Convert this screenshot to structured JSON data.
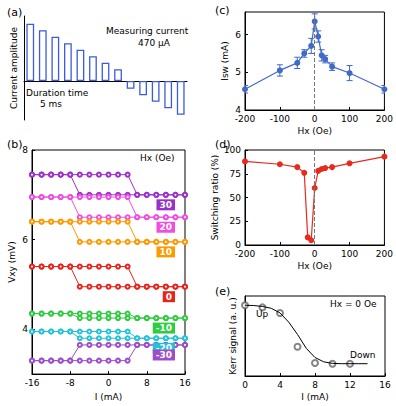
{
  "chart_data": [
    {
      "title": "(a)",
      "type": "bar",
      "categories": [
        null,
        null,
        null,
        null,
        null,
        null,
        null,
        null,
        null,
        null,
        null,
        null,
        null
      ],
      "values": [
        0.88,
        0.78,
        0.68,
        0.58,
        0.48,
        0.38,
        0.28,
        0.18,
        -0.12,
        -0.22,
        -0.32,
        -0.42,
        -0.52
      ],
      "color": "#3b5bdb",
      "ylim": [
        -0.6,
        1.0
      ],
      "tick_labels": false,
      "y_label": "Current amplitude",
      "annotations": [
        "Duration time",
        "5 ms",
        "Measuring current",
        "470 μA"
      ]
    },
    {
      "title": "(b)",
      "type": "line",
      "marker": "open_circle",
      "x": [
        -16,
        -14,
        -12,
        -10,
        -8,
        -6,
        -4,
        -2,
        0,
        2,
        4,
        6,
        8,
        10,
        12,
        14,
        16,
        16,
        14,
        12,
        10,
        8,
        6,
        4,
        2,
        0,
        -2,
        -4,
        -6,
        -8,
        -10,
        -12,
        -14,
        -16
      ],
      "series": [
        {
          "name": "30",
          "color": "#9b30c8",
          "values": [
            7.45,
            7.45,
            7.45,
            7.45,
            7.45,
            7.45,
            7.45,
            7.45,
            7.45,
            7.45,
            7.45,
            7.0,
            7.0,
            7.0,
            7.0,
            7.0,
            7.0,
            7.0,
            7.0,
            7.0,
            7.0,
            7.0,
            7.0,
            7.0,
            7.0,
            7.0,
            7.0,
            7.0,
            7.0,
            7.45,
            7.45,
            7.45,
            7.45,
            7.45
          ]
        },
        {
          "name": "20",
          "color": "#f04de0",
          "values": [
            6.95,
            6.95,
            6.95,
            6.95,
            6.95,
            6.95,
            6.95,
            6.95,
            6.95,
            6.95,
            6.95,
            6.5,
            6.5,
            6.5,
            6.5,
            6.5,
            6.5,
            6.5,
            6.5,
            6.5,
            6.5,
            6.5,
            6.5,
            6.5,
            6.5,
            6.5,
            6.5,
            6.5,
            6.5,
            6.95,
            6.95,
            6.95,
            6.95,
            6.95
          ]
        },
        {
          "name": "10",
          "color": "#ff9900",
          "values": [
            6.4,
            6.4,
            6.4,
            6.4,
            6.4,
            6.4,
            6.4,
            6.4,
            6.4,
            6.4,
            6.4,
            5.95,
            5.95,
            5.95,
            5.95,
            5.95,
            5.95,
            5.95,
            5.95,
            5.95,
            5.95,
            5.95,
            5.95,
            5.95,
            5.95,
            5.95,
            5.95,
            5.95,
            5.95,
            6.4,
            6.4,
            6.4,
            6.4,
            6.4
          ]
        },
        {
          "name": "0",
          "color": "#e8231a",
          "values": [
            5.4,
            5.4,
            5.4,
            5.4,
            5.4,
            5.4,
            5.4,
            5.4,
            5.4,
            5.4,
            5.4,
            4.95,
            4.95,
            4.95,
            4.95,
            4.95,
            4.95,
            4.95,
            4.95,
            4.95,
            4.95,
            4.95,
            4.95,
            4.95,
            4.95,
            4.95,
            4.95,
            4.95,
            4.95,
            5.4,
            5.4,
            5.4,
            5.4,
            5.4
          ]
        },
        {
          "name": "-10",
          "color": "#2ecc40",
          "values": [
            4.35,
            4.35,
            4.35,
            4.35,
            4.35,
            4.35,
            4.35,
            4.35,
            4.35,
            4.35,
            4.35,
            4.25,
            4.25,
            4.25,
            4.25,
            4.25,
            4.25,
            4.25,
            4.25,
            4.25,
            4.25,
            4.25,
            4.25,
            4.25,
            4.25,
            4.25,
            4.25,
            4.25,
            4.25,
            4.35,
            4.35,
            4.35,
            4.35,
            4.35
          ]
        },
        {
          "name": "-20",
          "color": "#22c3d6",
          "values": [
            3.95,
            3.95,
            3.95,
            3.95,
            3.95,
            3.95,
            3.95,
            3.95,
            3.95,
            3.95,
            3.95,
            3.8,
            3.8,
            3.8,
            3.8,
            3.8,
            3.8,
            3.8,
            3.8,
            3.8,
            3.8,
            3.8,
            3.8,
            3.8,
            3.8,
            3.8,
            3.8,
            3.8,
            3.8,
            3.95,
            3.95,
            3.95,
            3.95,
            3.95
          ]
        },
        {
          "name": "-30",
          "color": "#9b4dca",
          "values": [
            3.3,
            3.3,
            3.3,
            3.3,
            3.3,
            3.3,
            3.3,
            3.3,
            3.3,
            3.3,
            3.3,
            3.65,
            3.65,
            3.65,
            3.65,
            3.65,
            3.65,
            3.65,
            3.65,
            3.65,
            3.65,
            3.65,
            3.65,
            3.65,
            3.65,
            3.65,
            3.65,
            3.65,
            3.65,
            3.3,
            3.3,
            3.3,
            3.3,
            3.3
          ]
        }
      ],
      "x_label": "I (mA)",
      "y_label": "Vxy (mV)",
      "xlim": [
        -16,
        16
      ],
      "xticks": [
        -16,
        -8,
        0,
        8,
        16
      ],
      "ylim": [
        3,
        8
      ],
      "yticks": [
        4,
        6,
        8
      ],
      "annotations": [
        "Hx (Oe)"
      ]
    },
    {
      "title": "(c)",
      "type": "line",
      "marker": "circle",
      "color": "#4169c8",
      "x": [
        -200,
        -100,
        -50,
        -30,
        -10,
        0,
        10,
        20,
        30,
        50,
        100,
        200
      ],
      "values": [
        4.55,
        5.05,
        5.25,
        5.5,
        5.7,
        6.35,
        5.95,
        5.45,
        5.35,
        5.15,
        4.98,
        4.55
      ],
      "errors": [
        0.1,
        0.15,
        0.15,
        0.1,
        0.2,
        0.2,
        0.15,
        0.15,
        0.1,
        0.1,
        0.2,
        0.1
      ],
      "x_label": "Hx (Oe)",
      "y_label": "Isw (mA)",
      "xlim": [
        -200,
        200
      ],
      "xticks": [
        -200,
        -100,
        0,
        100,
        200
      ],
      "ylim": [
        4,
        6.6
      ],
      "yticks": [
        4,
        5,
        6
      ]
    },
    {
      "title": "(d)",
      "type": "line",
      "marker": "circle",
      "color": "#e8291c",
      "x": [
        -200,
        -100,
        -50,
        -30,
        -20,
        -10,
        0,
        10,
        20,
        30,
        50,
        100,
        200
      ],
      "values": [
        88,
        85,
        82,
        76,
        8,
        5,
        60,
        78,
        80,
        81,
        82,
        86,
        93
      ],
      "x_label": "Hx (Oe)",
      "y_label": "Switching ratio (%)",
      "xlim": [
        -200,
        200
      ],
      "xticks": [
        -200,
        -100,
        0,
        100,
        200
      ],
      "ylim": [
        0,
        100
      ],
      "yticks": [
        0,
        25,
        50,
        75,
        100
      ]
    },
    {
      "title": "(e)",
      "type": "scatter",
      "series": [
        {
          "type": "scatter",
          "marker": "open_circle",
          "color": "#666666",
          "x": [
            0,
            2,
            4,
            6,
            8,
            10,
            12
          ],
          "values": [
            1.0,
            0.93,
            0.75,
            -0.35,
            -0.88,
            -0.9,
            -0.9
          ]
        },
        {
          "type": "line",
          "color": "#000000",
          "x": [
            0,
            1,
            2,
            3,
            4,
            5,
            6,
            7,
            8,
            9,
            10,
            11,
            12,
            13,
            14
          ],
          "values": [
            1.0,
            0.99,
            0.96,
            0.9,
            0.75,
            0.45,
            0.05,
            -0.4,
            -0.7,
            -0.84,
            -0.89,
            -0.9,
            -0.9,
            -0.9,
            -0.9
          ]
        }
      ],
      "x_label": "I (mA)",
      "y_label": "Kerr signal (a. u.)",
      "xlim": [
        0,
        16
      ],
      "xticks": [
        0,
        4,
        8,
        12,
        16
      ],
      "ylim": [
        -1.3,
        1.3
      ],
      "tick_labels": "x",
      "annotations": [
        "Up",
        "Down",
        "Hx = 0 Oe"
      ]
    }
  ]
}
